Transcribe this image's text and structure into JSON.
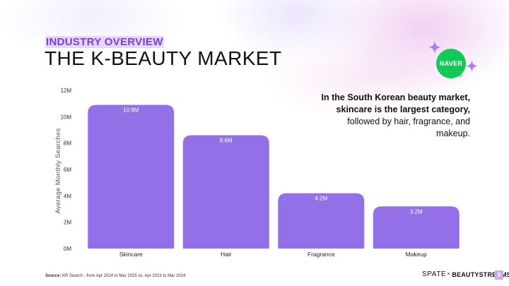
{
  "header": {
    "kicker": "INDUSTRY OVERVIEW",
    "title": "THE K-BEAUTY MARKET"
  },
  "badge": {
    "label": "NAVER"
  },
  "description": {
    "bold": "In the South Korean beauty market, skincare is the largest category,",
    "regular": " followed by hair, fragrance, and makeup."
  },
  "chart_data": {
    "type": "bar",
    "categories": [
      "Skincare",
      "Hair",
      "Fragrance",
      "Makeup"
    ],
    "values": [
      10.9,
      8.6,
      4.2,
      3.2
    ],
    "data_labels": [
      "10.9M",
      "8.6M",
      "4.2M",
      "3.2M"
    ],
    "ylabel": "Average Monthly Searches",
    "xlabel": "",
    "ylim": [
      0,
      12
    ],
    "y_ticks": [
      0,
      2,
      4,
      6,
      8,
      10,
      12
    ],
    "y_tick_labels": [
      "0M",
      "2M",
      "4M",
      "6M",
      "8M",
      "10M",
      "12M"
    ],
    "bar_color": "#9370e8",
    "grid": false,
    "legend": "none"
  },
  "footer": {
    "source_label": "Source:",
    "source_text": " KR Search - from Apr 2024 to Mar 2025 vs. Apr 2023 to Mar 2024",
    "brand_spate": "SPATE",
    "brand_x": "×",
    "brand_beautystreams": "BEAUTYSTREAMS",
    "page_number": "9"
  },
  "colors": {
    "accent_purple": "#7a3fd6",
    "kicker_highlight": "#e7d6fb",
    "naver_green": "#11c956",
    "sparkle_purple": "#a780ee",
    "page_badge": "#c7aaf7"
  }
}
